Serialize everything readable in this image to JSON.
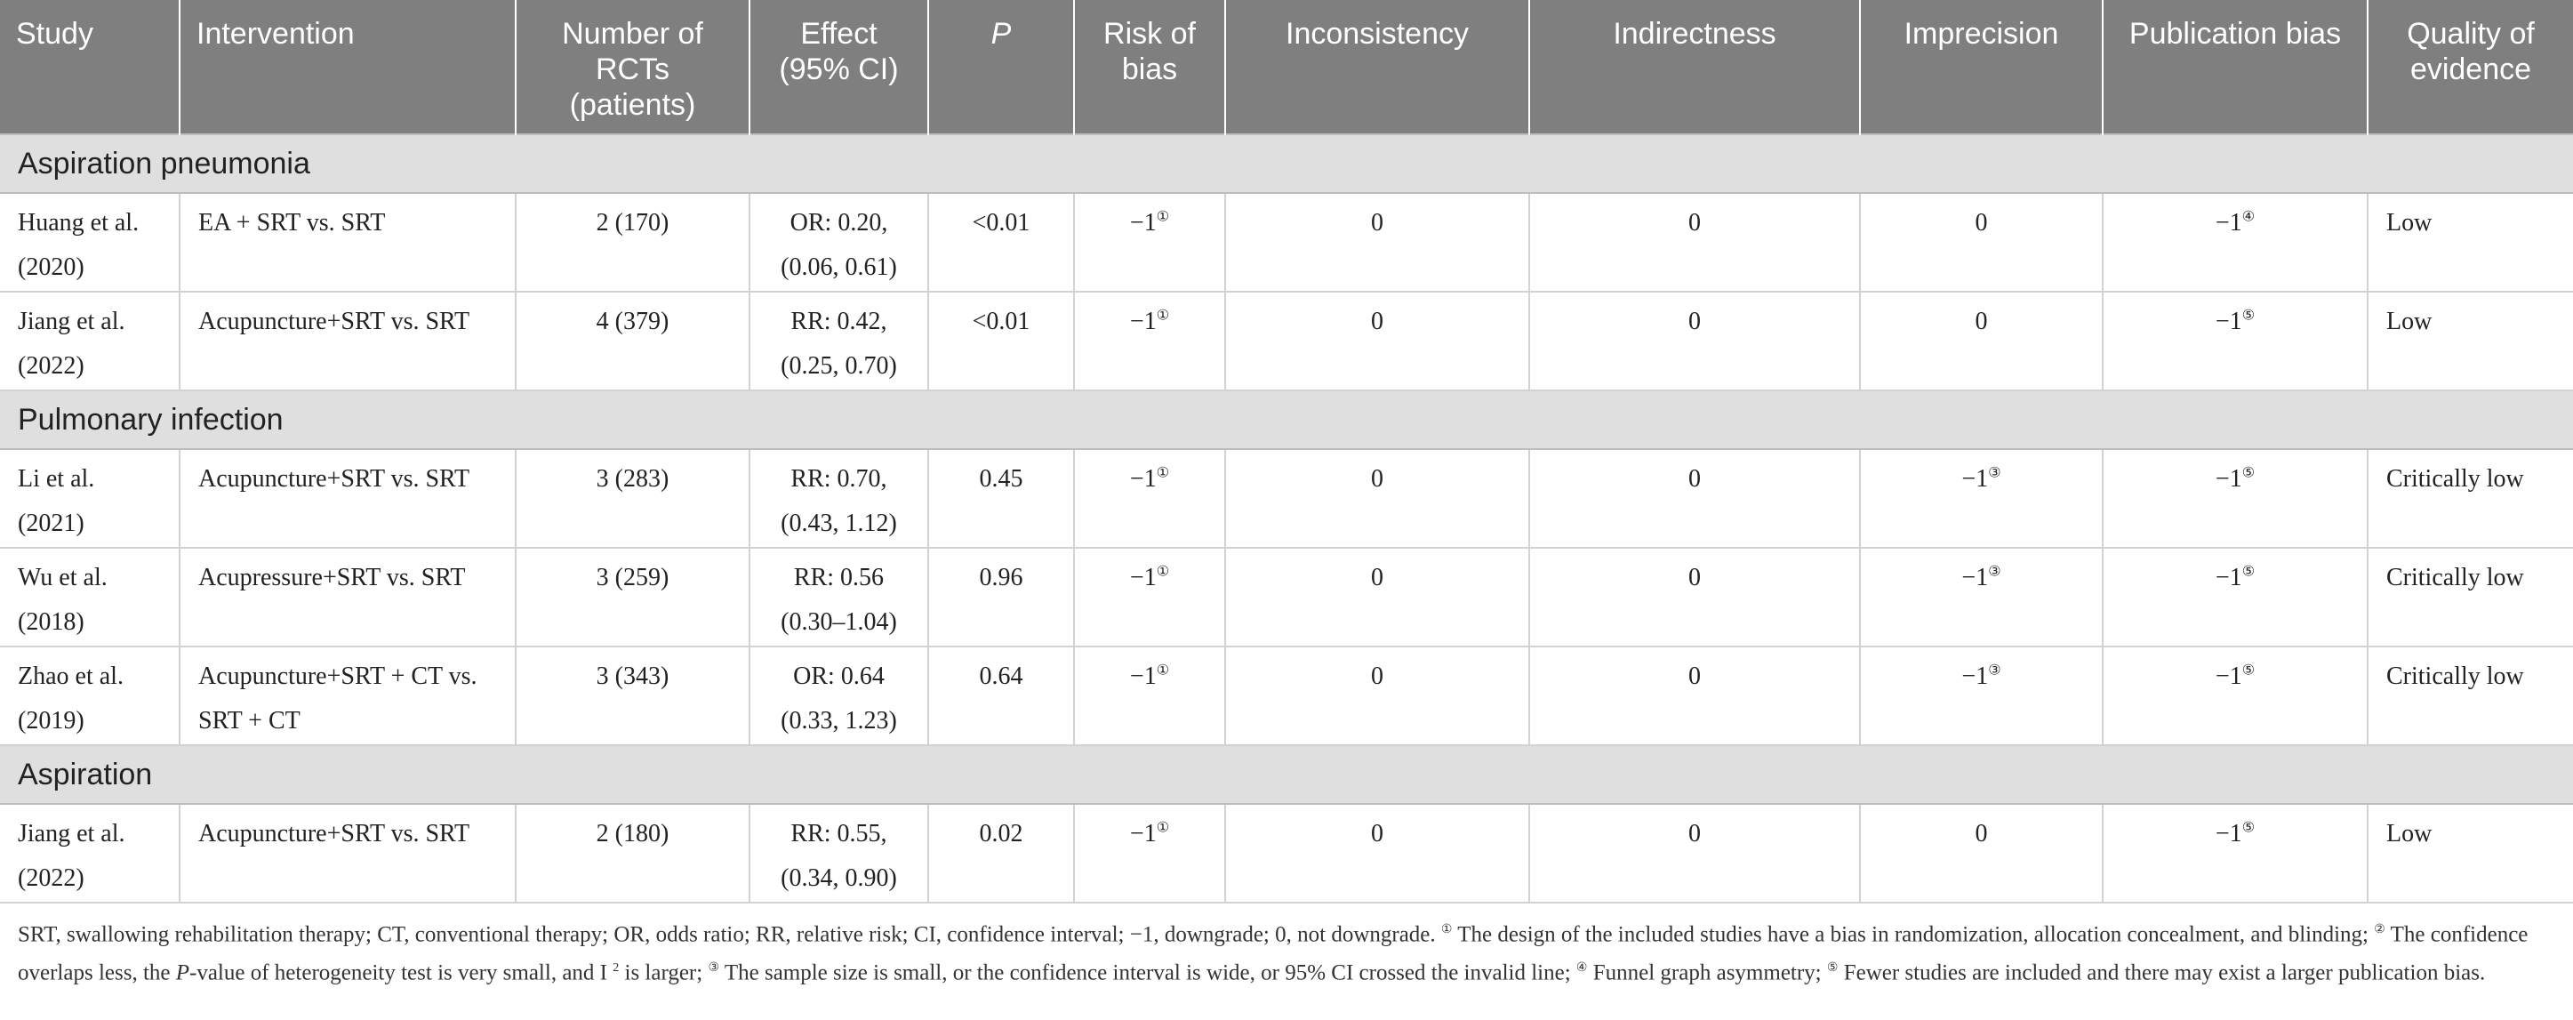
{
  "headers": {
    "study": "Study",
    "intervention": "Intervention",
    "rcts": "Number of RCTs (patients)",
    "effect": "Effect (95% CI)",
    "p": "P",
    "risk_of_bias": "Risk of bias",
    "inconsistency": "Inconsistency",
    "indirectness": "Indirectness",
    "imprecision": "Imprecision",
    "publication_bias": "Publication bias",
    "quality": "Quality of evidence"
  },
  "sections": [
    {
      "title": "Aspiration pneumonia",
      "rows": [
        {
          "study": "Huang et al. (2020)",
          "intervention": "EA + SRT vs. SRT",
          "rcts": "2 (170)",
          "effect": "OR: 0.20, (0.06, 0.61)",
          "p": "<0.01",
          "rob": "−1",
          "rob_mark": "①",
          "inconsistency": "0",
          "indirectness": "0",
          "imprecision": "0",
          "imprecision_mark": "",
          "pubbias": "−1",
          "pubbias_mark": "④",
          "quality": "Low"
        },
        {
          "study": "Jiang et al. (2022)",
          "intervention": "Acupuncture+SRT vs. SRT",
          "rcts": "4 (379)",
          "effect": "RR: 0.42, (0.25, 0.70)",
          "p": "<0.01",
          "rob": "−1",
          "rob_mark": "①",
          "inconsistency": "0",
          "indirectness": "0",
          "imprecision": "0",
          "imprecision_mark": "",
          "pubbias": "−1",
          "pubbias_mark": "⑤",
          "quality": "Low"
        }
      ]
    },
    {
      "title": "Pulmonary infection",
      "rows": [
        {
          "study": "Li et al. (2021)",
          "intervention": "Acupuncture+SRT vs. SRT",
          "rcts": "3 (283)",
          "effect": "RR: 0.70, (0.43, 1.12)",
          "p": "0.45",
          "rob": "−1",
          "rob_mark": "①",
          "inconsistency": "0",
          "indirectness": "0",
          "imprecision": "−1",
          "imprecision_mark": "③",
          "pubbias": "−1",
          "pubbias_mark": "⑤",
          "quality": "Critically low"
        },
        {
          "study": "Wu et al. (2018)",
          "intervention": "Acupressure+SRT vs. SRT",
          "rcts": "3 (259)",
          "effect": "RR: 0.56 (0.30–1.04)",
          "p": "0.96",
          "rob": "−1",
          "rob_mark": "①",
          "inconsistency": "0",
          "indirectness": "0",
          "imprecision": "−1",
          "imprecision_mark": "③",
          "pubbias": "−1",
          "pubbias_mark": "⑤",
          "quality": "Critically low"
        },
        {
          "study": "Zhao et al. (2019)",
          "intervention": "Acupuncture+SRT + CT vs. SRT + CT",
          "rcts": "3 (343)",
          "effect": "OR: 0.64 (0.33, 1.23)",
          "p": "0.64",
          "rob": "−1",
          "rob_mark": "①",
          "inconsistency": "0",
          "indirectness": "0",
          "imprecision": "−1",
          "imprecision_mark": "③",
          "pubbias": "−1",
          "pubbias_mark": "⑤",
          "quality": "Critically low"
        }
      ]
    },
    {
      "title": "Aspiration",
      "rows": [
        {
          "study": "Jiang et al. (2022)",
          "intervention": "Acupuncture+SRT vs. SRT",
          "rcts": "2 (180)",
          "effect": "RR: 0.55, (0.34, 0.90)",
          "p": "0.02",
          "rob": "−1",
          "rob_mark": "①",
          "inconsistency": "0",
          "indirectness": "0",
          "imprecision": "0",
          "imprecision_mark": "",
          "pubbias": "−1",
          "pubbias_mark": "⑤",
          "quality": "Low"
        }
      ]
    }
  ],
  "footnote": {
    "abbrev": "SRT, swallowing rehabilitation therapy; CT, conventional therapy; OR, odds ratio; RR, relative risk; CI, confidence interval; −1, downgrade; 0, not downgrade.",
    "m1": "①",
    "n1": "The design of the included studies have a bias in randomization, allocation concealment, and blinding;",
    "m2": "②",
    "n2a": "The confidence overlaps less, the",
    "n2p": "P",
    "n2b": "-value of heterogeneity test is very small, and I",
    "n2sq": "2",
    "n2c": "is larger;",
    "m3": "③",
    "n3": "The sample size is small, or the confidence interval is wide, or 95% CI crossed the invalid line;",
    "m4": "④",
    "n4": "Funnel graph asymmetry;",
    "m5": "⑤",
    "n5": "Fewer studies are included and there may exist a larger publication bias."
  }
}
